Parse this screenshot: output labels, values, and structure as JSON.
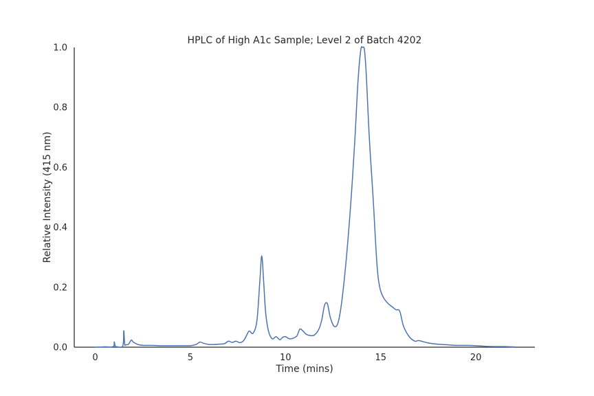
{
  "chart_data": {
    "type": "line",
    "title": "HPLC of High A1c Sample; Level 2 of Batch 4202",
    "xlabel": "Time (mins)",
    "ylabel": "Relative Intensity (415 nm)",
    "xlim": [
      -1.1,
      23.1
    ],
    "ylim": [
      0,
      1.0
    ],
    "xticks": [
      0,
      5,
      10,
      15,
      20
    ],
    "yticks": [
      0.0,
      0.2,
      0.4,
      0.6,
      0.8,
      1.0
    ],
    "xtick_labels": [
      "0",
      "5",
      "10",
      "15",
      "20"
    ],
    "ytick_labels": [
      "0.0",
      "0.2",
      "0.4",
      "0.6",
      "0.8",
      "1.0"
    ],
    "grid": false,
    "line_color": "#4c72b0",
    "series": [
      {
        "x": [
          0,
          0.5,
          0.95,
          1.0,
          1.05,
          1.1,
          1.45,
          1.5,
          1.55,
          1.6,
          1.75,
          1.9,
          2.0,
          2.3,
          2.6,
          3.0,
          3.5,
          4.0,
          4.5,
          5.0,
          5.3,
          5.5,
          5.7,
          6.0,
          6.5,
          6.8,
          7.0,
          7.2,
          7.4,
          7.6,
          7.8,
          8.0,
          8.1,
          8.3,
          8.5,
          8.65,
          8.75,
          8.85,
          8.95,
          9.1,
          9.3,
          9.5,
          9.7,
          9.85,
          10.0,
          10.2,
          10.4,
          10.6,
          10.75,
          10.9,
          11.05,
          11.2,
          11.5,
          11.75,
          11.9,
          12.05,
          12.2,
          12.35,
          12.55,
          12.75,
          12.95,
          13.2,
          13.45,
          13.65,
          13.8,
          13.95,
          14.05,
          14.15,
          14.25,
          14.4,
          14.6,
          14.8,
          14.95,
          15.15,
          15.4,
          15.6,
          15.8,
          16.0,
          16.2,
          16.5,
          16.8,
          17.0,
          17.5,
          18.0,
          18.5,
          19.0,
          19.5,
          20.0,
          20.5,
          21.0,
          21.5,
          22.0
        ],
        "y": [
          0.0,
          0.001,
          0.002,
          0.018,
          0.003,
          0.002,
          0.004,
          0.055,
          0.01,
          0.008,
          0.01,
          0.024,
          0.017,
          0.008,
          0.006,
          0.006,
          0.005,
          0.005,
          0.005,
          0.005,
          0.009,
          0.017,
          0.013,
          0.009,
          0.01,
          0.012,
          0.02,
          0.016,
          0.02,
          0.015,
          0.022,
          0.045,
          0.054,
          0.047,
          0.09,
          0.22,
          0.305,
          0.22,
          0.12,
          0.055,
          0.028,
          0.035,
          0.025,
          0.033,
          0.035,
          0.028,
          0.03,
          0.038,
          0.06,
          0.055,
          0.045,
          0.04,
          0.04,
          0.06,
          0.09,
          0.14,
          0.145,
          0.1,
          0.07,
          0.08,
          0.15,
          0.3,
          0.5,
          0.7,
          0.88,
          0.99,
          1.0,
          0.99,
          0.9,
          0.7,
          0.5,
          0.28,
          0.2,
          0.165,
          0.145,
          0.135,
          0.125,
          0.12,
          0.07,
          0.035,
          0.02,
          0.022,
          0.014,
          0.01,
          0.008,
          0.006,
          0.006,
          0.005,
          0.003,
          0.002,
          0.002,
          0.001
        ]
      }
    ]
  }
}
